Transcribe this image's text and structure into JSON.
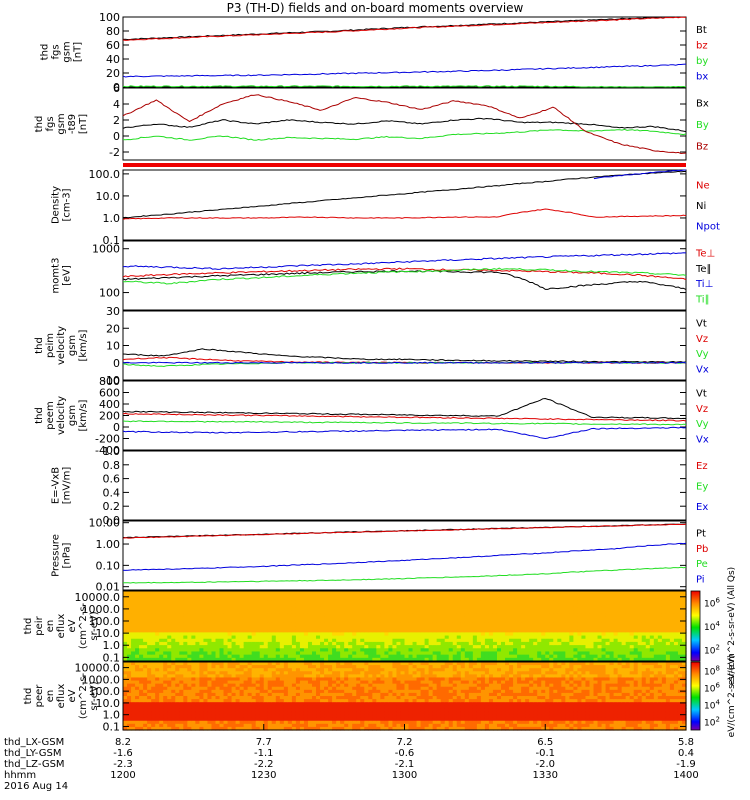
{
  "title": "P3 (TH-D) fields and on-board moments overview",
  "colors": {
    "black": "#000000",
    "red": "#dd0000",
    "green": "#22dd22",
    "blue": "#0000dd",
    "darkred": "#aa0000"
  },
  "chart_data": [
    {
      "type": "line",
      "panel": "fgs_gsm",
      "ylabel": [
        "thd",
        "fgs",
        "gsm",
        "[nT]"
      ],
      "ylim": [
        0,
        100
      ],
      "ytick_labels": [
        "0",
        "20",
        "40",
        "60",
        "80",
        "100"
      ],
      "legend": [
        {
          "label": "Bt",
          "color": "black"
        },
        {
          "label": "bz",
          "color": "red"
        },
        {
          "label": "by",
          "color": "green"
        },
        {
          "label": "bx",
          "color": "blue"
        }
      ],
      "series": [
        {
          "name": "Bt",
          "color": "black",
          "values": [
            68,
            72,
            76,
            80,
            85,
            89,
            93,
            97,
            101
          ]
        },
        {
          "name": "bz",
          "color": "red",
          "values": [
            67,
            71,
            75,
            79,
            84,
            88,
            92,
            96,
            100
          ]
        },
        {
          "name": "by",
          "color": "green",
          "values": [
            1,
            1,
            1,
            1,
            1,
            1,
            1,
            0,
            0
          ]
        },
        {
          "name": "bx",
          "color": "blue",
          "values": [
            15,
            16,
            17,
            19,
            21,
            23,
            26,
            29,
            32
          ]
        }
      ]
    },
    {
      "type": "line",
      "panel": "fgs_gsm_t89",
      "ylabel": [
        "thd",
        "fgs",
        "gsm",
        "-t89",
        "[nT]"
      ],
      "ylim": [
        -3,
        6
      ],
      "ytick_labels": [
        "-2",
        "0",
        "2",
        "4",
        "6"
      ],
      "legend": [
        {
          "label": "Bx",
          "color": "black"
        },
        {
          "label": "By",
          "color": "green"
        },
        {
          "label": "Bz",
          "color": "darkred"
        }
      ],
      "series": [
        {
          "name": "Bx",
          "color": "black",
          "values": [
            1.0,
            1.5,
            1.1,
            2.0,
            1.5,
            2.0,
            1.7,
            1.5,
            1.9,
            1.5,
            2.0,
            2.2,
            1.7,
            1.7,
            1.5,
            1.0,
            1.2,
            0.6
          ]
        },
        {
          "name": "By",
          "color": "green",
          "values": [
            -0.5,
            0.0,
            -0.5,
            0.0,
            -0.5,
            -0.2,
            -0.3,
            -0.4,
            -0.1,
            -0.3,
            0.2,
            0.3,
            0.5,
            0.8,
            0.6,
            0.8,
            0.6,
            0.2
          ]
        },
        {
          "name": "Bz",
          "color": "darkred",
          "values": [
            2.5,
            4.5,
            1.8,
            4.0,
            5.2,
            4.3,
            3.2,
            4.8,
            4.2,
            3.3,
            4.4,
            3.8,
            2.2,
            3.6,
            0.5,
            -1.0,
            -1.8,
            -2.2
          ]
        }
      ]
    },
    {
      "type": "line",
      "panel": "density",
      "ylabel": [
        "Density",
        "[cm-3]"
      ],
      "yscale": "log",
      "ylim": [
        0.1,
        150
      ],
      "ytick_labels": [
        "0.1",
        "1.0",
        "10.0",
        "100.0"
      ],
      "legend": [
        {
          "label": "Ne",
          "color": "red"
        },
        {
          "label": "Ni",
          "color": "black"
        },
        {
          "label": "Npot",
          "color": "blue"
        }
      ],
      "series": [
        {
          "name": "Ne",
          "color": "red",
          "values": [
            0.9,
            1.0,
            1.0,
            1.0,
            1.1,
            1.0,
            1.0,
            1.1,
            1.1,
            2.5,
            1.1,
            1.2,
            1.3
          ]
        },
        {
          "name": "Ni",
          "color": "black",
          "values": [
            1.0,
            1.5,
            2.3,
            3.5,
            5.4,
            8.2,
            12.5,
            19,
            29,
            45,
            70,
            100,
            130
          ]
        },
        {
          "name": "Npot",
          "color": "blue",
          "values": [
            null,
            null,
            null,
            null,
            null,
            null,
            null,
            null,
            null,
            null,
            60,
            100,
            150
          ]
        }
      ]
    },
    {
      "type": "line",
      "panel": "mom_temperature",
      "ylabel": [
        "momt3",
        "[eV]"
      ],
      "yscale": "log",
      "ylim": [
        40,
        1500
      ],
      "ytick_labels": [
        "100",
        "1000"
      ],
      "legend": [
        {
          "label": "Te⊥",
          "color": "red"
        },
        {
          "label": "Te∥",
          "color": "black"
        },
        {
          "label": "Ti⊥",
          "color": "blue"
        },
        {
          "label": "Ti∥",
          "color": "green"
        }
      ],
      "series": [
        {
          "name": "Te⊥",
          "color": "red",
          "values": [
            230,
            260,
            280,
            300,
            320,
            340,
            350,
            330,
            320,
            300,
            280,
            250,
            200
          ]
        },
        {
          "name": "Te∥",
          "color": "black",
          "values": [
            200,
            220,
            240,
            260,
            280,
            300,
            310,
            300,
            290,
            120,
            150,
            180,
            120
          ]
        },
        {
          "name": "Ti⊥",
          "color": "blue",
          "values": [
            400,
            380,
            350,
            380,
            420,
            450,
            500,
            550,
            600,
            650,
            700,
            750,
            800
          ]
        },
        {
          "name": "Ti∥",
          "color": "green",
          "values": [
            180,
            160,
            200,
            220,
            250,
            280,
            300,
            320,
            350,
            330,
            300,
            280,
            250
          ]
        }
      ]
    },
    {
      "type": "line",
      "panel": "peim_velocity",
      "ylabel": [
        "thd",
        "peim",
        "velocity",
        "gsm",
        "[km/s]"
      ],
      "ylim": [
        -10,
        30
      ],
      "ytick_labels": [
        "-10",
        "0",
        "10",
        "20",
        "30"
      ],
      "legend": [
        {
          "label": "Vt",
          "color": "black"
        },
        {
          "label": "Vz",
          "color": "red"
        },
        {
          "label": "Vy",
          "color": "green"
        },
        {
          "label": "Vx",
          "color": "blue"
        }
      ],
      "series": [
        {
          "name": "Vt",
          "color": "black",
          "values": [
            5,
            4,
            8,
            6,
            4,
            3,
            2,
            2,
            1.5,
            1.2,
            1,
            0.8,
            0.6,
            0.5,
            0.4
          ]
        },
        {
          "name": "Vz",
          "color": "red",
          "values": [
            2,
            3,
            2,
            1,
            0.5,
            0.3,
            0.2,
            0.1,
            0,
            0,
            0,
            0,
            0,
            0,
            0
          ]
        },
        {
          "name": "Vy",
          "color": "green",
          "values": [
            -1,
            -2,
            -1,
            -0.5,
            0,
            0,
            0,
            0,
            0,
            0,
            0,
            0,
            0,
            0,
            0
          ]
        },
        {
          "name": "Vx",
          "color": "blue",
          "values": [
            0,
            0,
            0,
            0,
            0,
            0,
            0,
            0,
            0,
            0,
            0,
            0,
            0,
            0,
            0
          ]
        }
      ]
    },
    {
      "type": "line",
      "panel": "peem_velocity",
      "ylabel": [
        "thd",
        "peem",
        "velocity",
        "gsm",
        "[km/s]"
      ],
      "ylim": [
        -400,
        800
      ],
      "ytick_labels": [
        "-400",
        "-200",
        "0",
        "200",
        "400",
        "600",
        "800"
      ],
      "legend": [
        {
          "label": "Vt",
          "color": "black"
        },
        {
          "label": "Vz",
          "color": "red"
        },
        {
          "label": "Vy",
          "color": "green"
        },
        {
          "label": "Vx",
          "color": "blue"
        }
      ],
      "series": [
        {
          "name": "Vt",
          "color": "black",
          "values": [
            270,
            260,
            250,
            240,
            230,
            220,
            210,
            200,
            190,
            500,
            170,
            160,
            150
          ]
        },
        {
          "name": "Vz",
          "color": "red",
          "values": [
            230,
            220,
            210,
            200,
            190,
            180,
            170,
            160,
            150,
            140,
            130,
            120,
            110
          ]
        },
        {
          "name": "Vy",
          "color": "green",
          "values": [
            100,
            100,
            90,
            90,
            80,
            80,
            70,
            70,
            60,
            60,
            50,
            50,
            40
          ]
        },
        {
          "name": "Vx",
          "color": "blue",
          "values": [
            -80,
            -90,
            -100,
            -90,
            -80,
            -70,
            -60,
            -50,
            -40,
            -200,
            -30,
            -20,
            -10
          ]
        }
      ]
    },
    {
      "type": "line",
      "panel": "efield",
      "ylabel": [
        "E=-VxB",
        "[mV/m]"
      ],
      "ylim": [
        0,
        1.0
      ],
      "ytick_labels": [
        "0.0",
        "0.2",
        "0.4",
        "0.6",
        "0.8",
        "1.0"
      ],
      "legend": [
        {
          "label": "Ez",
          "color": "red"
        },
        {
          "label": "Ey",
          "color": "green"
        },
        {
          "label": "Ex",
          "color": "blue"
        }
      ],
      "series": []
    },
    {
      "type": "line",
      "panel": "pressure",
      "ylabel": [
        "Pressure",
        "[nPa]"
      ],
      "yscale": "log",
      "ylim": [
        0.007,
        12
      ],
      "ytick_labels": [
        "0.01",
        "0.10",
        "1.00",
        "10.00"
      ],
      "legend": [
        {
          "label": "Pt",
          "color": "black"
        },
        {
          "label": "Pb",
          "color": "red"
        },
        {
          "label": "Pe",
          "color": "green"
        },
        {
          "label": "Pi",
          "color": "blue"
        }
      ],
      "series": [
        {
          "name": "Pt",
          "color": "black",
          "values": [
            2.0,
            2.4,
            2.9,
            3.5,
            4.2,
            5.0,
            6.0,
            7.2,
            8.6
          ]
        },
        {
          "name": "Pb",
          "color": "red",
          "values": [
            1.9,
            2.3,
            2.8,
            3.4,
            4.1,
            4.9,
            5.9,
            7.1,
            8.5
          ]
        },
        {
          "name": "Pe",
          "color": "green",
          "values": [
            0.015,
            0.016,
            0.018,
            0.02,
            0.024,
            0.03,
            0.04,
            0.06,
            0.08
          ]
        },
        {
          "name": "Pi",
          "color": "blue",
          "values": [
            0.06,
            0.07,
            0.09,
            0.12,
            0.17,
            0.25,
            0.38,
            0.6,
            1.1
          ]
        }
      ]
    },
    {
      "type": "heatmap",
      "panel": "peir_spectrogram",
      "ylabel": [
        "thd",
        "peir",
        "en",
        "eflux",
        "eV",
        "(cm^2-s-",
        "sr-eV)"
      ],
      "yscale": "log",
      "ylim": [
        0.05,
        30000
      ],
      "ytick_labels": [
        "0.1",
        "1.0",
        "10.0",
        "100.0",
        "1000.0",
        "10000.0"
      ],
      "colorbar_ticks": [
        "10^6",
        "10^4",
        "10^2"
      ],
      "colorbar_label": "eV/(cm^2-s-sr-eV) (All Qs)"
    },
    {
      "type": "heatmap",
      "panel": "peer_spectrogram",
      "ylabel": [
        "thd",
        "peer",
        "en",
        "eflux",
        "eV",
        "(cm^2-s-",
        "sr-eV)"
      ],
      "yscale": "log",
      "ylim": [
        0.05,
        30000
      ],
      "ytick_labels": [
        "0.1",
        "1.0",
        "10.0",
        "100.0",
        "1000.0",
        "10000.0"
      ],
      "colorbar_ticks": [
        "10^8",
        "10^6",
        "10^4",
        "10^2"
      ],
      "colorbar_label": "eV/(cm^2-s-sr-eV)"
    }
  ],
  "time_axis": {
    "rows": [
      {
        "label": "thd_LX-GSM",
        "values": [
          "8.2",
          "7.7",
          "7.2",
          "6.5",
          "5.8"
        ]
      },
      {
        "label": "thd_LY-GSM",
        "values": [
          "-1.6",
          "-1.1",
          "-0.6",
          "-0.1",
          "0.4"
        ]
      },
      {
        "label": "thd_LZ-GSM",
        "values": [
          "-2.3",
          "-2.2",
          "-2.1",
          "-2.0",
          "-1.9"
        ]
      },
      {
        "label": "hhmm",
        "values": [
          "1200",
          "1230",
          "1300",
          "1330",
          "1400"
        ]
      }
    ],
    "date": "2016 Aug 14"
  }
}
